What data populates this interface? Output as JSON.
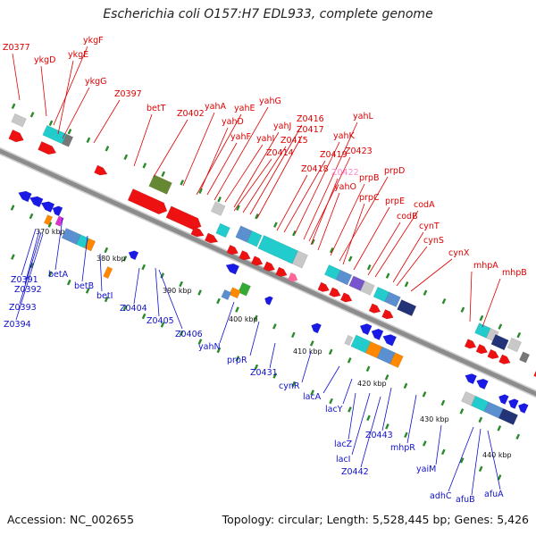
{
  "title": "Escherichia coli O157:H7 EDL933, complete genome",
  "footer": {
    "accession": "Accession: NC_002655",
    "stats": "Topology: circular; Length: 5,528,445 bp; Genes: 5,426"
  },
  "colors": {
    "backbone": "#8c8c8c",
    "forward_gene": "#ee1111",
    "reverse_gene": "#1a1ae6",
    "forward_label": "#dd0000",
    "reverse_label": "#1010cc",
    "highlight_label": "#ff88cc",
    "tick_dot": "#2a8a2a"
  },
  "scale_labels": [
    "370 kbp",
    "380 kbp",
    "390 kbp",
    "400 kbp",
    "410 kbp",
    "420 kbp",
    "430 kbp",
    "440 kbp"
  ],
  "forward_labels": [
    "Z0377",
    "ykgD",
    "ykgF",
    "ykgE",
    "ykgG",
    "Z0397",
    "betT",
    "Z0402",
    "yahA",
    "yahE",
    "yahG",
    "yahD",
    "yahF",
    "yahI",
    "yahJ",
    "Z0416",
    "Z0417",
    "Z0415",
    "Z0414",
    "yahK",
    "yahL",
    "Z0419",
    "Z0418",
    "Z0423",
    "Z0422",
    "yahO",
    "prpB",
    "prpD",
    "prpC",
    "prpE",
    "codA",
    "codB",
    "cynT",
    "cynS",
    "cynX",
    "mhpA",
    "mhpB"
  ],
  "reverse_labels": [
    "Z0391",
    "Z0392",
    "Z0393",
    "Z0394",
    "betA",
    "betB",
    "betI",
    "Z0404",
    "Z0405",
    "Z0406",
    "yahN",
    "prpR",
    "Z0431",
    "cynR",
    "lacA",
    "lacY",
    "lacZ",
    "Z0443",
    "lacI",
    "Z0442",
    "mhpR",
    "yaiM",
    "adhC",
    "afuB",
    "afuA"
  ]
}
